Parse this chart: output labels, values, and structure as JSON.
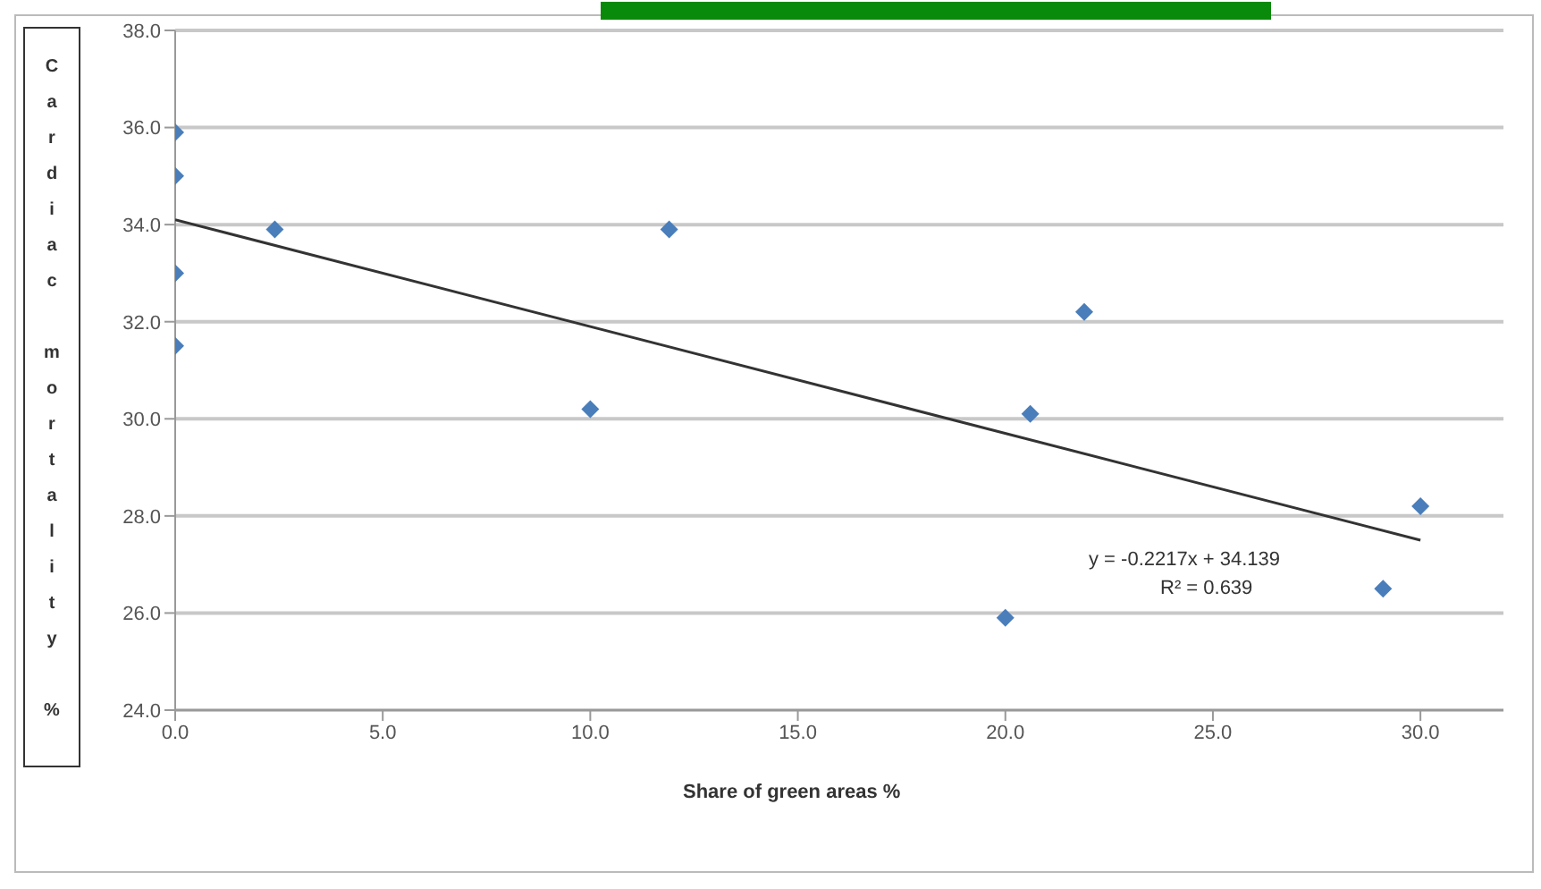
{
  "chart_data": {
    "type": "scatter",
    "xlabel": "Share of green areas %",
    "ylabel": "Cardiac mortality %",
    "xlim": [
      0,
      32
    ],
    "xticks": [
      {
        "value": 0,
        "label": "0.0"
      },
      {
        "value": 5,
        "label": "5.0"
      },
      {
        "value": 10,
        "label": "10.0"
      },
      {
        "value": 15,
        "label": "15.0"
      },
      {
        "value": 20,
        "label": "20.0"
      },
      {
        "value": 25,
        "label": "25.0"
      },
      {
        "value": 30,
        "label": "30.0"
      }
    ],
    "ylim": [
      24,
      38
    ],
    "yticks": [
      {
        "value": 24,
        "label": "24.0"
      },
      {
        "value": 26,
        "label": "26.0"
      },
      {
        "value": 28,
        "label": "28.0"
      },
      {
        "value": 30,
        "label": "30.0"
      },
      {
        "value": 32,
        "label": "32.0"
      },
      {
        "value": 34,
        "label": "34.0"
      },
      {
        "value": 36,
        "label": "36.0"
      },
      {
        "value": 38,
        "label": "38.0"
      }
    ],
    "grid": "y",
    "marker": "diamond",
    "series": [
      {
        "type": "scatter",
        "color": "#4a7ebb",
        "x": [
          0,
          0,
          0,
          0,
          2.4,
          10.0,
          11.9,
          20.0,
          20.6,
          21.9,
          29.1,
          30.0
        ],
        "values": [
          35.9,
          35.0,
          33.0,
          31.5,
          33.9,
          30.2,
          33.9,
          25.9,
          30.1,
          32.2,
          26.5,
          28.2
        ]
      },
      {
        "type": "line",
        "color": "#333333",
        "marker": "none",
        "x": [
          0,
          30
        ],
        "values": [
          34.1,
          27.5
        ]
      }
    ],
    "annotations": [
      "y = -0.2217x + 34.139",
      "R² = 0.639"
    ]
  }
}
